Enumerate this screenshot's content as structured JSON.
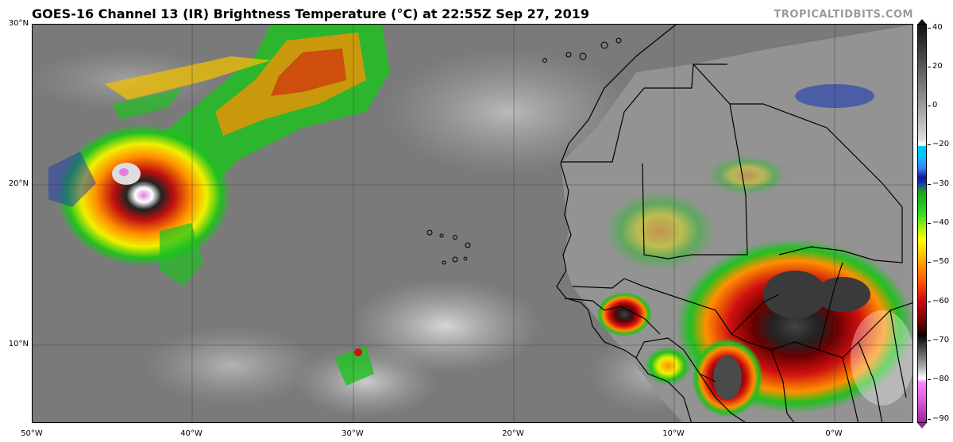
{
  "title": "GOES-16 Channel 13 (IR) Brightness Temperature (°C) at 22:55Z Sep 27, 2019",
  "credit": "TROPICALTIDBITS.COM",
  "lat_labels": [
    "30°N",
    "20°N",
    "10°N"
  ],
  "lon_labels": [
    "50°W",
    "40°W",
    "30°W",
    "20°W",
    "10°W",
    "0°W"
  ],
  "colorbar": {
    "labels": [
      "40",
      "30",
      "20",
      "10",
      "0",
      "−10",
      "−20",
      "−30",
      "−40",
      "−50",
      "−60",
      "−70",
      "−80",
      "−90"
    ],
    "colors": {
      "warm_gray_top": "#1a1a1a",
      "gray_mid": "#cfcfcf",
      "cyan": "#00c8ff",
      "blue": "#0a1a8c",
      "green": "#20c020",
      "yellow": "#ffff00",
      "orange": "#ff9000",
      "red": "#d01010",
      "dark_red": "#5a0000",
      "black": "#000000",
      "white": "#ffffff",
      "magenta": "#ff60ff",
      "purple": "#a020a0"
    }
  },
  "features": {
    "hurricane_core_color": "#e080e0",
    "background_gray": "#7e7e7e",
    "land_gray": "#9a9a9a"
  }
}
